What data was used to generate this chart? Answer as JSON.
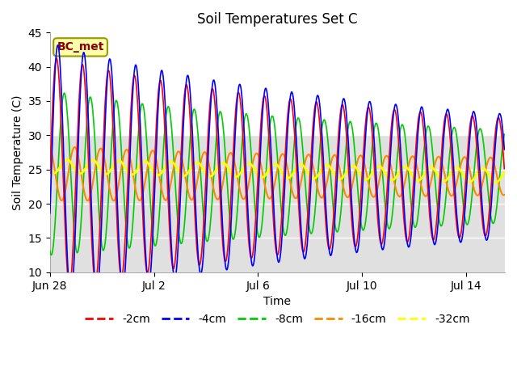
{
  "title": "Soil Temperatures Set C",
  "xlabel": "Time",
  "ylabel": "Soil Temperature (C)",
  "ylim": [
    10,
    45
  ],
  "yticks": [
    10,
    15,
    20,
    25,
    30,
    35,
    40,
    45
  ],
  "num_days": 17.5,
  "x_tick_days": [
    0,
    4,
    8,
    12,
    16
  ],
  "x_tick_labels": [
    "Jun 28",
    "Jul 2",
    "Jul 6",
    "Jul 10",
    "Jul 14"
  ],
  "legend_labels": [
    "-2cm",
    "-4cm",
    "-8cm",
    "-16cm",
    "-32cm"
  ],
  "legend_colors": [
    "#ff0000",
    "#0000ff",
    "#00cc00",
    "#ff8800",
    "#ffff00"
  ],
  "annotation_text": "BC_met",
  "annotation_bg": "#ffffaa",
  "annotation_border": "#999900",
  "annotation_fg": "#880000",
  "bg_upper": "#ffffff",
  "bg_lower": "#e0e0e0",
  "bg_split": 30
}
